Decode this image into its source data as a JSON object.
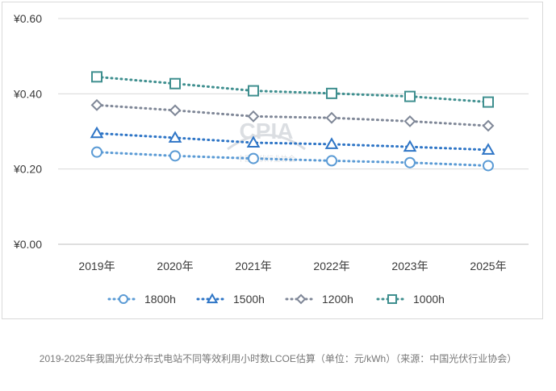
{
  "caption": "2019-2025年我国光伏分布式电站不同等效利用小时数LCOE估算（单位：元/kWh）（来源：中国光伏行业协会）",
  "watermark": {
    "text": "CPIA",
    "subtext": "中国光伏行业协会"
  },
  "chart_data": {
    "type": "line",
    "title": "",
    "xlabel": "",
    "ylabel": "",
    "categories": [
      "2019年",
      "2020年",
      "2021年",
      "2022年",
      "2023年",
      "2025年"
    ],
    "yticks": [
      "¥0.00",
      "¥0.20",
      "¥0.40",
      "¥0.60"
    ],
    "ylim": [
      0,
      0.6
    ],
    "grid": true,
    "legend": "bottom",
    "series": [
      {
        "name": "1800h",
        "values": [
          0.245,
          0.235,
          0.228,
          0.222,
          0.217,
          0.209
        ],
        "color": "#5b9bd5",
        "marker": "circle"
      },
      {
        "name": "1500h",
        "values": [
          0.295,
          0.283,
          0.27,
          0.266,
          0.259,
          0.251
        ],
        "color": "#2e75c6",
        "marker": "triangle"
      },
      {
        "name": "1200h",
        "values": [
          0.37,
          0.356,
          0.34,
          0.336,
          0.327,
          0.315
        ],
        "color": "#7f8797",
        "marker": "diamond"
      },
      {
        "name": "1000h",
        "values": [
          0.445,
          0.427,
          0.408,
          0.401,
          0.393,
          0.378
        ],
        "color": "#3f8f8f",
        "marker": "square"
      }
    ]
  }
}
